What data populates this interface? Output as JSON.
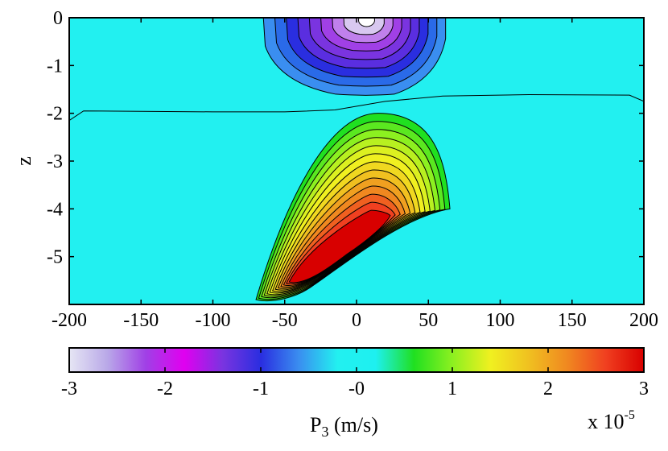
{
  "chart_data": {
    "type": "heatmap",
    "xlabel": "",
    "ylabel": "z",
    "xlim": [
      -200,
      200
    ],
    "ylim": [
      -6,
      0
    ],
    "xticks": [
      "-200",
      "-150",
      "-100",
      "-50",
      "0",
      "50",
      "100",
      "150",
      "200"
    ],
    "yticks": [
      "0",
      "-1",
      "-2",
      "-3",
      "-4",
      "-5"
    ],
    "background_value": 0,
    "features": [
      {
        "kind": "negative-lobe",
        "center": [
          7,
          -0.05
        ],
        "min_value": -3.0,
        "extent": {
          "x": [
            -65,
            62
          ],
          "z": [
            -1.6,
            0
          ]
        }
      },
      {
        "kind": "positive-lobe",
        "peak": [
          0,
          -4.6
        ],
        "max_value": 3.0,
        "extent": {
          "x": [
            -70,
            65
          ],
          "z": [
            -5.9,
            -2.0
          ]
        }
      },
      {
        "kind": "zero-contour",
        "points": [
          [
            -200,
            -2.15
          ],
          [
            -190,
            -1.95
          ],
          [
            -100,
            -1.97
          ],
          [
            -50,
            -1.97
          ],
          [
            -15,
            -1.93
          ],
          [
            20,
            -1.75
          ],
          [
            60,
            -1.64
          ],
          [
            120,
            -1.61
          ],
          [
            190,
            -1.62
          ],
          [
            200,
            -1.75
          ]
        ]
      }
    ],
    "colorbar": {
      "ticks": [
        "-3",
        "-2",
        "-1",
        "-0",
        "1",
        "2",
        "3"
      ],
      "range": [
        -3,
        3
      ],
      "label_main": "P",
      "label_sub": "3",
      "label_unit": " (m/s)",
      "multiplier": "x 10",
      "multiplier_exp": "-5",
      "colors": [
        "#e6e6f4",
        "#b9a8e8",
        "#a040e6",
        "#e000f0",
        "#7a34e0",
        "#2a2ee0",
        "#3a8ef0",
        "#22f0f0",
        "#1ef0f0",
        "#20e020",
        "#8cf020",
        "#f0f020",
        "#f0c020",
        "#f08820",
        "#f04020",
        "#d80000"
      ]
    }
  }
}
